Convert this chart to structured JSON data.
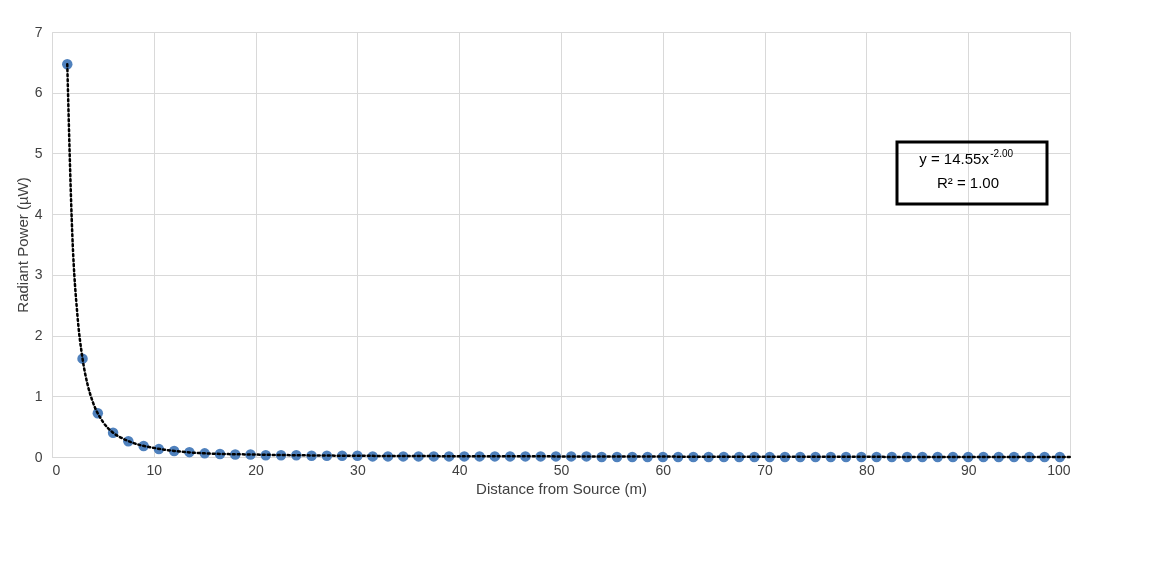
{
  "chart_data": {
    "type": "scatter",
    "xlabel": "Distance from Source (m)",
    "ylabel": "Radiant Power  (µW)",
    "x": [
      1.5,
      3,
      4.5,
      6,
      7.5,
      9,
      10.5,
      12,
      13.5,
      15,
      16.5,
      18,
      19.5,
      21,
      22.5,
      24,
      25.5,
      27,
      28.5,
      30,
      31.5,
      33,
      34.5,
      36,
      37.5,
      39,
      40.5,
      42,
      43.5,
      45,
      46.5,
      48,
      49.5,
      51,
      52.5,
      54,
      55.5,
      57,
      58.5,
      60,
      61.5,
      63,
      64.5,
      66,
      67.5,
      69,
      70.5,
      72,
      73.5,
      75,
      76.5,
      78,
      79.5,
      81,
      82.5,
      84,
      85.5,
      87,
      88.5,
      90,
      91.5,
      93,
      94.5,
      96,
      97.5,
      99
    ],
    "series": [
      {
        "color": "#4f81bd",
        "marker": "circle",
        "values": [
          6.47,
          1.62,
          0.72,
          0.4,
          0.26,
          0.18,
          0.13,
          0.1,
          0.08,
          0.06,
          0.05,
          0.04,
          0.04,
          0.03,
          0.03,
          0.03,
          0.02,
          0.02,
          0.02,
          0.02,
          0.01,
          0.01,
          0.01,
          0.01,
          0.01,
          0.01,
          0.01,
          0.01,
          0.01,
          0.01,
          0.01,
          0.01,
          0.01,
          0.01,
          0.01,
          0,
          0,
          0,
          0,
          0,
          0,
          0,
          0,
          0,
          0,
          0,
          0,
          0,
          0,
          0,
          0,
          0,
          0,
          0,
          0,
          0,
          0,
          0,
          0,
          0,
          0,
          0,
          0,
          0,
          0,
          0
        ]
      },
      {
        "type": "line",
        "color": "#000000",
        "line_style": "dotted",
        "x": [
          1.5,
          2,
          2.5,
          3,
          3.5,
          4,
          5,
          6,
          7,
          8,
          10,
          12,
          15,
          20,
          30,
          50,
          100
        ],
        "values": [
          6.47,
          3.64,
          2.33,
          1.62,
          1.19,
          0.91,
          0.58,
          0.4,
          0.3,
          0.23,
          0.15,
          0.1,
          0.06,
          0.04,
          0.02,
          0.01,
          0.0
        ]
      }
    ],
    "xlim": [
      0,
      100
    ],
    "xticks": [
      0,
      10,
      20,
      30,
      40,
      50,
      60,
      70,
      80,
      90,
      100
    ],
    "ylim": [
      0,
      7
    ],
    "yticks": [
      0,
      1,
      2,
      3,
      4,
      5,
      6,
      7
    ],
    "grid": true,
    "annotations": [
      "y = 14.55x$^{-2.00}$",
      "R² = 1.00"
    ]
  }
}
